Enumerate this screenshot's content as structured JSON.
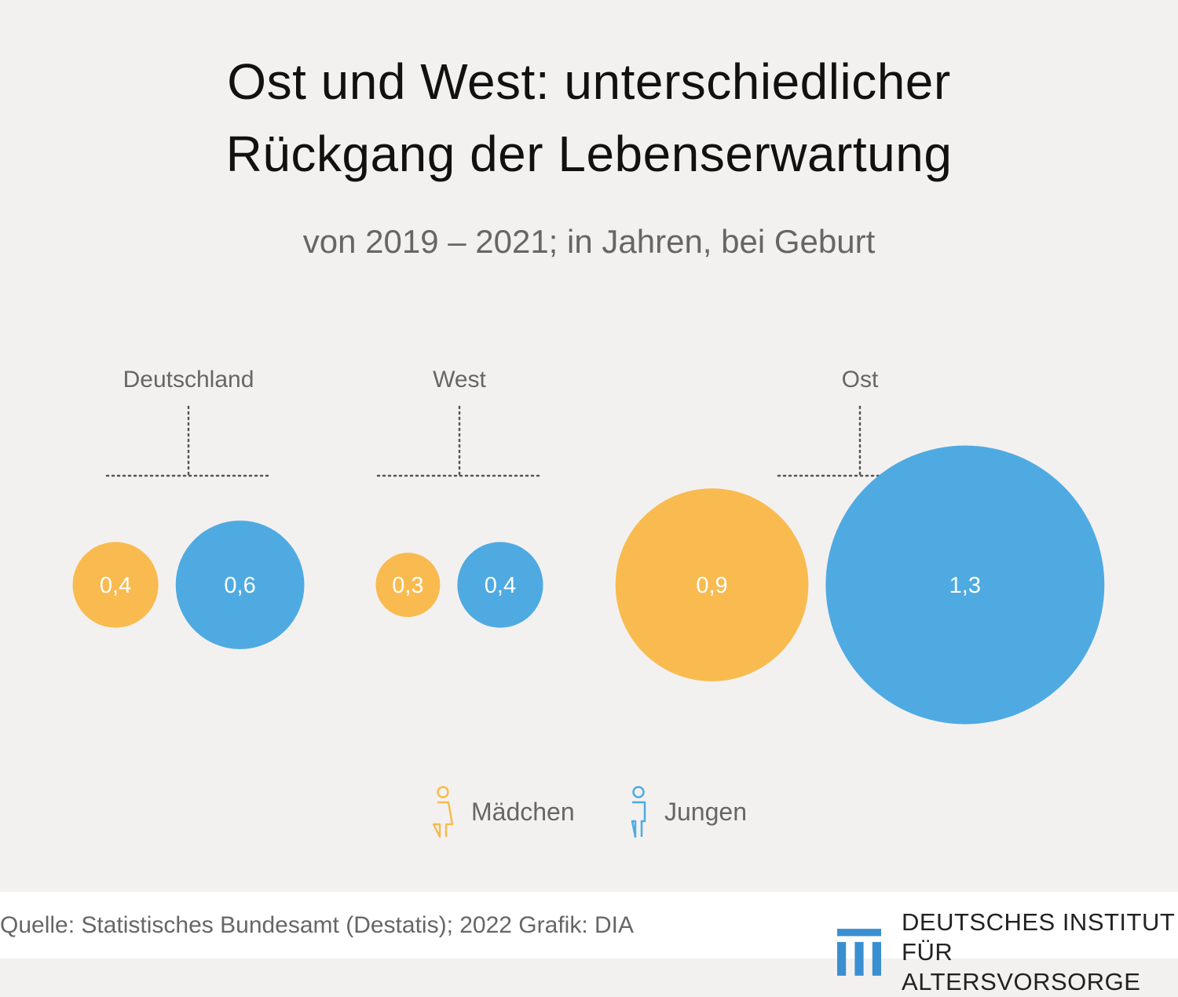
{
  "header": {
    "title_line1": "Ost und West: unterschiedlicher",
    "title_line2": "Rückgang der Lebenserwartung",
    "subtitle": "von 2019 – 2021; in Jahren, bei Geburt"
  },
  "chart_data": {
    "type": "bubble",
    "title": "Ost und West: unterschiedlicher Rückgang der Lebenserwartung",
    "subtitle": "von 2019 – 2021; in Jahren, bei Geburt",
    "categories": [
      "Deutschland",
      "West",
      "Ost"
    ],
    "series": [
      {
        "name": "Mädchen",
        "color": "#f9bb4f",
        "values": [
          0.4,
          0.3,
          0.9
        ],
        "labels": [
          "0,4",
          "0,3",
          "0,9"
        ]
      },
      {
        "name": "Jungen",
        "color": "#4faae2",
        "values": [
          0.6,
          0.4,
          1.3
        ],
        "labels": [
          "0,6",
          "0,4",
          "1,3"
        ]
      }
    ],
    "legend_position": "bottom"
  },
  "legend": [
    {
      "label": "Mädchen",
      "icon": "girl-icon",
      "color": "#f9bb4f"
    },
    {
      "label": "Jungen",
      "icon": "boy-icon",
      "color": "#4faae2"
    }
  ],
  "footer": {
    "source": "Quelle: Statistisches Bundesamt (Destatis); 2022  Grafik: DIA",
    "logo_line1": "DEUTSCHES INSTITUT",
    "logo_line2": "FÜR ALTERSVORSORGE",
    "logo_color": "#3a8fd1"
  }
}
